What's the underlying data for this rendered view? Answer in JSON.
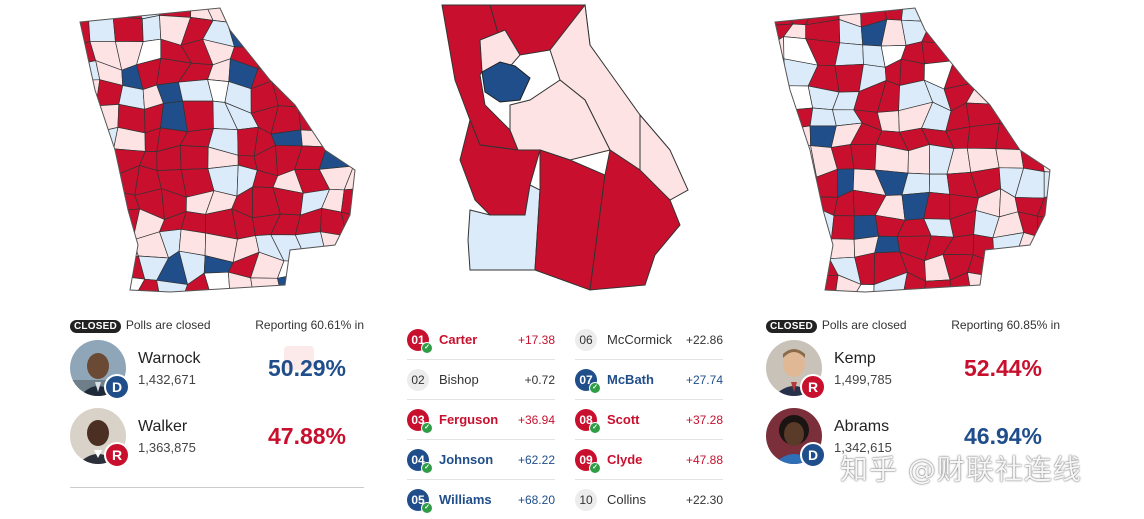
{
  "senate": {
    "status_badge": "CLOSED",
    "status_text": "Polls are closed",
    "reporting": "Reporting 60.61% in",
    "candidates": [
      {
        "name": "Warnock",
        "votes": "1,432,671",
        "pct": "50.29%",
        "party": "D"
      },
      {
        "name": "Walker",
        "votes": "1,363,875",
        "pct": "47.88%",
        "party": "R"
      }
    ]
  },
  "governor": {
    "status_badge": "CLOSED",
    "status_text": "Polls are closed",
    "reporting": "Reporting 60.85% in",
    "candidates": [
      {
        "name": "Kemp",
        "votes": "1,499,785",
        "pct": "52.44%",
        "party": "R"
      },
      {
        "name": "Abrams",
        "votes": "1,342,615",
        "pct": "46.94%",
        "party": "D"
      }
    ]
  },
  "districts": {
    "col1": [
      {
        "num": "01",
        "name": "Carter",
        "margin": "+17.38",
        "party": "R",
        "called": true
      },
      {
        "num": "02",
        "name": "Bishop",
        "margin": "+0.72",
        "party": "N",
        "called": false
      },
      {
        "num": "03",
        "name": "Ferguson",
        "margin": "+36.94",
        "party": "R",
        "called": true
      },
      {
        "num": "04",
        "name": "Johnson",
        "margin": "+62.22",
        "party": "D",
        "called": true
      },
      {
        "num": "05",
        "name": "Williams",
        "margin": "+68.20",
        "party": "D",
        "called": true
      }
    ],
    "col2": [
      {
        "num": "06",
        "name": "McCormick",
        "margin": "+22.86",
        "party": "N",
        "called": false
      },
      {
        "num": "07",
        "name": "McBath",
        "margin": "+27.74",
        "party": "D",
        "called": true
      },
      {
        "num": "08",
        "name": "Scott",
        "margin": "+37.28",
        "party": "R",
        "called": true
      },
      {
        "num": "09",
        "name": "Clyde",
        "margin": "+47.88",
        "party": "R",
        "called": true
      },
      {
        "num": "10",
        "name": "Collins",
        "margin": "+22.30",
        "party": "N",
        "called": false
      }
    ]
  },
  "colors": {
    "republican": "#c8102e",
    "democrat": "#1f4e8a",
    "lean_r": "#fde3e4",
    "lean_d": "#dcebfa"
  },
  "watermark": "知乎 @财联社连线"
}
